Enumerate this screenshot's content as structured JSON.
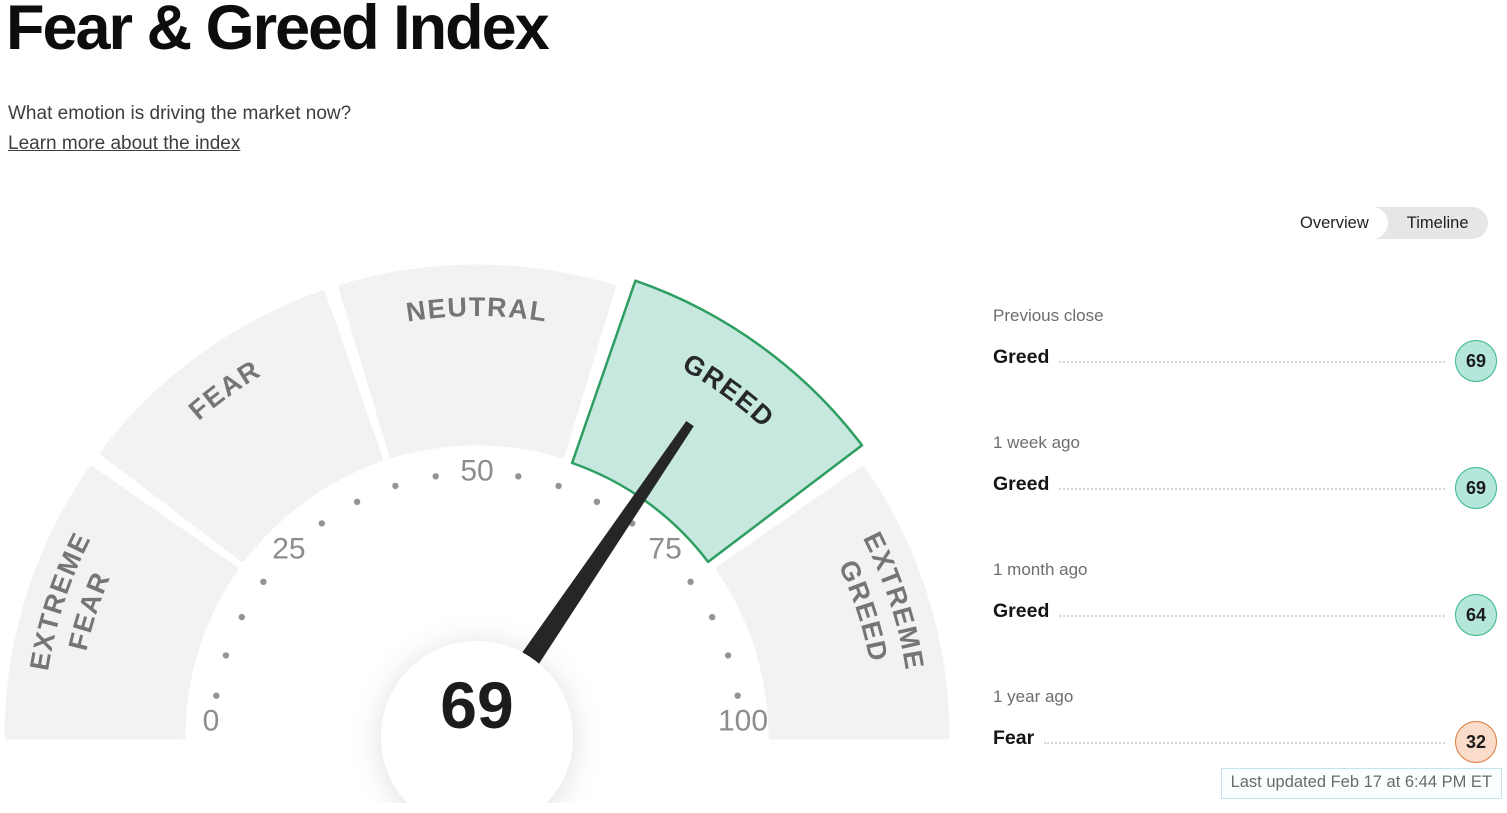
{
  "header": {
    "title": "Fear & Greed Index",
    "subtitle": "What emotion is driving the market now?",
    "link_text": "Learn more about the index"
  },
  "tabs": [
    {
      "label": "Overview",
      "selected": true
    },
    {
      "label": "Timeline",
      "selected": false
    }
  ],
  "chart_data": {
    "type": "gauge",
    "title": "Fear & Greed Index",
    "min": 0,
    "max": 100,
    "value": 69,
    "current_sentiment": "Greed",
    "tick_labels": [
      0,
      25,
      50,
      75,
      100
    ],
    "dot_interval": 5,
    "segments": [
      {
        "label": "EXTREME FEAR",
        "lines": [
          "EXTREME",
          "FEAR"
        ],
        "from": 0,
        "to": 20,
        "highlighted": false
      },
      {
        "label": "FEAR",
        "lines": [
          "FEAR"
        ],
        "from": 20,
        "to": 40,
        "highlighted": false
      },
      {
        "label": "NEUTRAL",
        "lines": [
          "NEUTRAL"
        ],
        "from": 40,
        "to": 60,
        "highlighted": false
      },
      {
        "label": "GREED",
        "lines": [
          "GREED"
        ],
        "from": 60,
        "to": 80,
        "highlighted": true
      },
      {
        "label": "EXTREME GREED",
        "lines": [
          "EXTREME",
          "GREED"
        ],
        "from": 80,
        "to": 100,
        "highlighted": false
      }
    ]
  },
  "history": [
    {
      "label": "Previous close",
      "sentiment": "Greed",
      "value": 69,
      "tone": "greed"
    },
    {
      "label": "1 week ago",
      "sentiment": "Greed",
      "value": 69,
      "tone": "greed"
    },
    {
      "label": "1 month ago",
      "sentiment": "Greed",
      "value": 64,
      "tone": "greed"
    },
    {
      "label": "1 year ago",
      "sentiment": "Fear",
      "value": 32,
      "tone": "fear"
    }
  ],
  "footer": {
    "last_updated": "Last updated Feb 17 at 6:44 PM ET"
  },
  "colors": {
    "segment_fill": "#f2f2f2",
    "highlight_fill": "#c6e8df",
    "highlight_border": "#2e9e62",
    "needle": "#262626",
    "segment_label": "#757575",
    "segment_label_highlight": "#26282a",
    "tick_label": "#8d8d8d",
    "tick_dot": "#949494",
    "greed_fill": "#b5e6db",
    "greed_border": "#35b689",
    "fear_fill": "#fbdccb",
    "fear_border": "#dd7c3e"
  }
}
